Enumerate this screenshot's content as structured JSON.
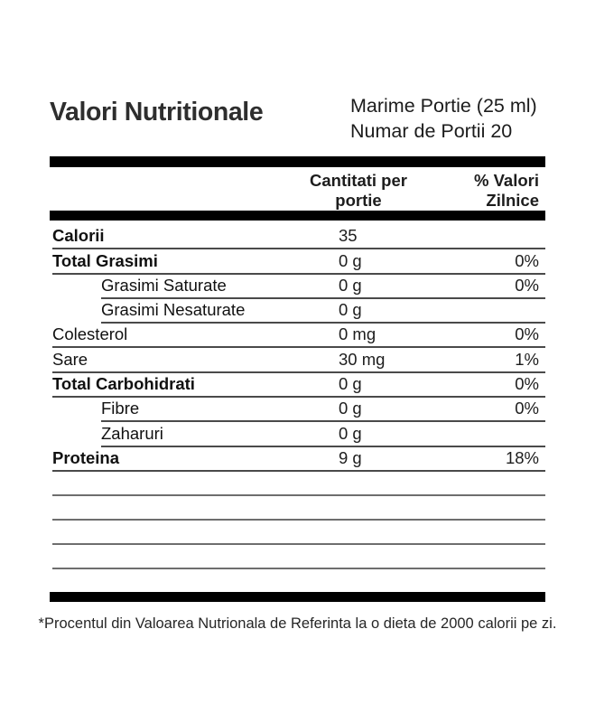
{
  "header": {
    "title": "Valori Nutritionale",
    "serving_size": "Marime Portie (25 ml)",
    "servings_per_container": "Numar de Portii 20"
  },
  "columns": {
    "amount_line1": "Cantitati per",
    "amount_line2": "portie",
    "pct_line1": "% Valori",
    "pct_line2": "Zilnice"
  },
  "rows": [
    {
      "label": "Calorii",
      "value": "35",
      "pct": "",
      "bold": true,
      "indent": false
    },
    {
      "label": "Total Grasimi",
      "value": "0 g",
      "pct": "0%",
      "bold": true,
      "indent": false
    },
    {
      "label": "Grasimi Saturate",
      "value": "0 g",
      "pct": "0%",
      "bold": false,
      "indent": true
    },
    {
      "label": "Grasimi Nesaturate",
      "value": "0 g",
      "pct": "",
      "bold": false,
      "indent": true
    },
    {
      "label": "Colesterol",
      "value": "0 mg",
      "pct": "0%",
      "bold": false,
      "indent": false
    },
    {
      "label": "Sare",
      "value": "30 mg",
      "pct": "1%",
      "bold": false,
      "indent": false
    },
    {
      "label": "Total Carbohidrati",
      "value": "0 g",
      "pct": "0%",
      "bold": true,
      "indent": false
    },
    {
      "label": "Fibre",
      "value": "0 g",
      "pct": "0%",
      "bold": false,
      "indent": true
    },
    {
      "label": "Zaharuri",
      "value": "0 g",
      "pct": "",
      "bold": false,
      "indent": true
    },
    {
      "label": "Proteina",
      "value": "9 g",
      "pct": "18%",
      "bold": true,
      "indent": false
    }
  ],
  "empty_rows_count": 4,
  "footnote": "*Procentul din Valoarea Nutrionala de Referinta la o dieta de 2000 calorii pe zi.",
  "colors": {
    "text": "#1d1d1d",
    "bar": "#000000",
    "row_rule": "#4a4a4a",
    "empty_row_rule": "#6e6e6e",
    "background": "#ffffff"
  }
}
